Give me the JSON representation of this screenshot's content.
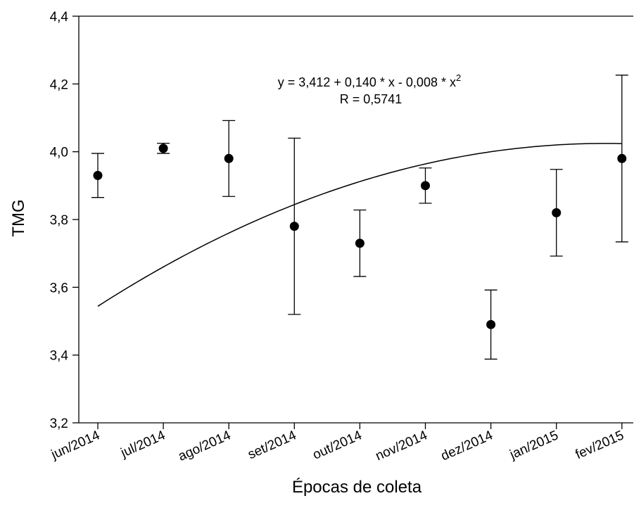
{
  "chart_data": {
    "type": "scatter",
    "title": "",
    "xlabel": "Épocas de coleta",
    "ylabel": "TMG",
    "categories": [
      "jun/2014",
      "jul/2014",
      "ago/2014",
      "set/2014",
      "out/2014",
      "nov/2014",
      "dez/2014",
      "jan/2015",
      "fev/2015"
    ],
    "y_tick_labels": [
      "3,2",
      "3,4",
      "3,6",
      "3,8",
      "4,0",
      "4,2",
      "4,4"
    ],
    "ylim": [
      3.2,
      4.4
    ],
    "grid": false,
    "series": [
      {
        "values": [
          3.93,
          4.01,
          3.98,
          3.78,
          3.73,
          3.9,
          3.49,
          3.82,
          3.98
        ],
        "err_low": [
          3.865,
          3.995,
          3.868,
          3.52,
          3.632,
          3.848,
          3.388,
          3.692,
          3.734
        ],
        "err_high": [
          3.995,
          4.025,
          4.092,
          4.04,
          3.828,
          3.952,
          3.592,
          3.948,
          4.226
        ]
      }
    ],
    "fit": {
      "type": "quadratic",
      "coefficients": [
        3.412,
        0.14,
        -0.008
      ],
      "x_start": 1,
      "x_end": 9
    },
    "annotations": {
      "equation_main": "y = 3,412 + 0,140 * x - 0,008 * x",
      "equation_sup": "2",
      "r_label": "R = 0,5741"
    },
    "colors": {
      "marker": "#000000",
      "line": "#000000"
    }
  }
}
